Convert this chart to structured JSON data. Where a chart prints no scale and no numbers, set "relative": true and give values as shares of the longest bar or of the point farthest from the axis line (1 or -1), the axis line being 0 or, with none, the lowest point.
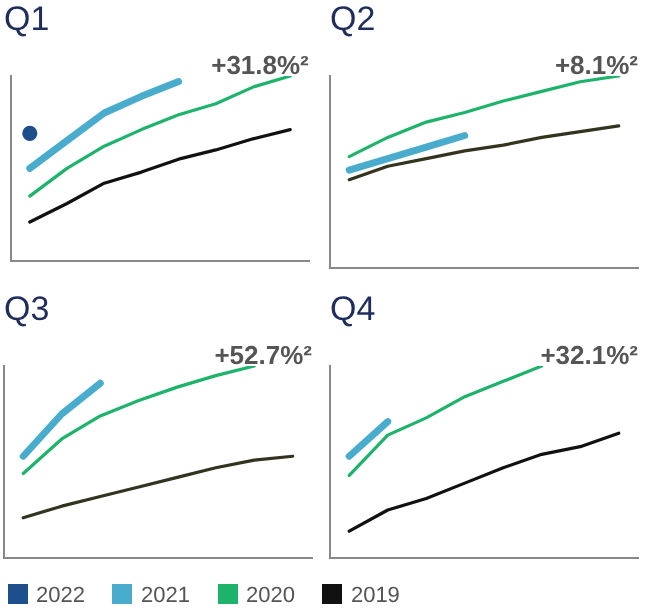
{
  "chart_data": [
    {
      "type": "line",
      "title": "Q1",
      "relative": true,
      "legend": "bottom",
      "annotations": [
        "+31.8%²"
      ],
      "categories": [
        null,
        null,
        null,
        null,
        null,
        null,
        null,
        null
      ],
      "series": [
        {
          "name": "2022",
          "color": "#1f4e8c",
          "marker": "circle",
          "values": [
            0.69,
            null,
            null,
            null,
            null,
            null,
            null,
            null
          ]
        },
        {
          "name": "2021",
          "color": "#4aaccc",
          "values": [
            0.5,
            0.65,
            0.8,
            0.89,
            0.97,
            null,
            null,
            null
          ]
        },
        {
          "name": "2020",
          "color": "#1db36b",
          "values": [
            0.35,
            0.5,
            0.62,
            0.71,
            0.79,
            0.85,
            0.94,
            1
          ]
        },
        {
          "name": "2019",
          "color": "#111111",
          "values": [
            0.21,
            0.31,
            0.42,
            0.48,
            0.55,
            0.6,
            0.66,
            0.71
          ]
        }
      ]
    },
    {
      "type": "line",
      "title": "Q2",
      "relative": true,
      "annotations": [
        "+8.1%²"
      ],
      "categories": [
        null,
        null,
        null,
        null,
        null,
        null,
        null,
        null
      ],
      "series": [
        {
          "color": "#1db36b",
          "values": [
            0.58,
            0.68,
            0.76,
            0.81,
            0.87,
            0.92,
            0.97,
            1
          ]
        },
        {
          "color": "#4aaccc",
          "values": [
            0.51,
            0.57,
            0.63,
            0.69,
            null,
            null,
            null,
            null
          ]
        },
        {
          "color": "#33331f",
          "values": [
            0.46,
            0.53,
            0.57,
            0.61,
            0.64,
            0.68,
            0.71,
            0.74
          ]
        }
      ]
    },
    {
      "type": "line",
      "title": "Q3",
      "relative": true,
      "annotations": [
        "+52.7%²"
      ],
      "categories": [
        null,
        null,
        null,
        null,
        null,
        null,
        null,
        null
      ],
      "series": [
        {
          "color": "#4aaccc",
          "values": [
            0.53,
            0.75,
            0.91,
            null,
            null,
            null,
            null,
            null
          ]
        },
        {
          "color": "#1db36b",
          "values": [
            0.44,
            0.62,
            0.74,
            0.82,
            0.89,
            0.95,
            1,
            null
          ]
        },
        {
          "color": "#33331f",
          "values": [
            0.21,
            0.27,
            0.32,
            0.37,
            0.42,
            0.47,
            0.51,
            0.53
          ]
        }
      ]
    },
    {
      "type": "line",
      "title": "Q4",
      "relative": true,
      "annotations": [
        "+32.1%²"
      ],
      "categories": [
        null,
        null,
        null,
        null,
        null,
        null,
        null,
        null
      ],
      "series": [
        {
          "color": "#4aaccc",
          "values": [
            0.53,
            0.71,
            null,
            null,
            null,
            null,
            null,
            null
          ]
        },
        {
          "color": "#1db36b",
          "values": [
            0.43,
            0.64,
            0.73,
            0.84,
            0.92,
            1,
            null,
            null
          ]
        },
        {
          "color": "#111111",
          "values": [
            0.14,
            0.25,
            0.31,
            0.39,
            0.47,
            0.54,
            0.58,
            0.65
          ]
        }
      ]
    }
  ]
}
